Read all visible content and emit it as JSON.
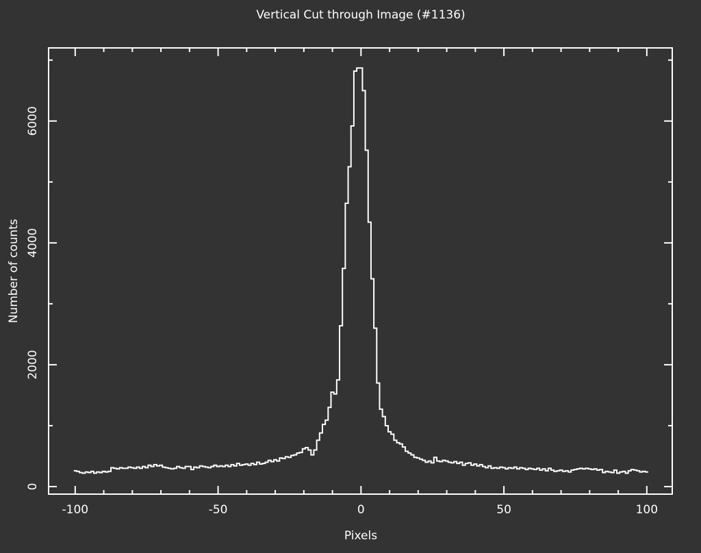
{
  "chart_data": {
    "type": "step",
    "title": "Vertical Cut through Image (#1136)",
    "x_label": "Pixels",
    "y_label": "Number of counts",
    "color": "#ffffff",
    "xlim": [
      -109.3,
      108.9
    ],
    "ylim": [
      -124,
      7200
    ],
    "xticks": [
      -100,
      -50,
      0,
      50,
      100
    ],
    "yticks": [
      0,
      2000,
      4000,
      6000
    ],
    "xminorticks": [
      -90,
      -80,
      -70,
      -60,
      -40,
      -30,
      -20,
      -10,
      10,
      20,
      30,
      40,
      60,
      70,
      80,
      90
    ],
    "yminorticks": [
      1000,
      3000,
      5000,
      7000
    ],
    "x": [
      -100,
      -99,
      -98,
      -97,
      -96,
      -95,
      -94,
      -93,
      -92,
      -91,
      -90,
      -89,
      -88,
      -87,
      -86,
      -85,
      -84,
      -83,
      -82,
      -81,
      -80,
      -79,
      -78,
      -77,
      -76,
      -75,
      -74,
      -73,
      -72,
      -71,
      -70,
      -69,
      -68,
      -67,
      -66,
      -65,
      -64,
      -63,
      -62,
      -61,
      -60,
      -59,
      -58,
      -57,
      -56,
      -55,
      -54,
      -53,
      -52,
      -51,
      -50,
      -49,
      -48,
      -47,
      -46,
      -45,
      -44,
      -43,
      -42,
      -41,
      -40,
      -39,
      -38,
      -37,
      -36,
      -35,
      -34,
      -33,
      -32,
      -31,
      -30,
      -29,
      -28,
      -27,
      -26,
      -25,
      -24,
      -23,
      -22,
      -21,
      -20,
      -19,
      -18,
      -17,
      -16,
      -15,
      -14,
      -13,
      -12,
      -11,
      -10,
      -9,
      -8,
      -7,
      -6,
      -5,
      -4,
      -3,
      -2,
      -1,
      0,
      1,
      2,
      3,
      4,
      5,
      6,
      7,
      8,
      9,
      10,
      11,
      12,
      13,
      14,
      15,
      16,
      17,
      18,
      19,
      20,
      21,
      22,
      23,
      24,
      25,
      26,
      27,
      28,
      29,
      30,
      31,
      32,
      33,
      34,
      35,
      36,
      37,
      38,
      39,
      40,
      41,
      42,
      43,
      44,
      45,
      46,
      47,
      48,
      49,
      50,
      51,
      52,
      53,
      54,
      55,
      56,
      57,
      58,
      59,
      60,
      61,
      62,
      63,
      64,
      65,
      66,
      67,
      68,
      69,
      70,
      71,
      72,
      73,
      74,
      75,
      76,
      77,
      78,
      79,
      80,
      81,
      82,
      83,
      84,
      85,
      86,
      87,
      88,
      89,
      90,
      91,
      92,
      93,
      94,
      95,
      96,
      97,
      98,
      99,
      100
    ],
    "values": [
      260,
      250,
      230,
      220,
      240,
      230,
      250,
      220,
      240,
      230,
      250,
      240,
      250,
      310,
      300,
      290,
      310,
      300,
      300,
      320,
      310,
      300,
      320,
      300,
      330,
      310,
      350,
      330,
      360,
      340,
      350,
      320,
      310,
      300,
      290,
      300,
      330,
      310,
      300,
      330,
      330,
      280,
      320,
      310,
      340,
      330,
      320,
      310,
      330,
      350,
      330,
      340,
      330,
      350,
      330,
      360,
      340,
      380,
      350,
      360,
      370,
      350,
      380,
      360,
      400,
      370,
      380,
      400,
      430,
      410,
      440,
      420,
      470,
      460,
      490,
      480,
      510,
      520,
      550,
      560,
      620,
      640,
      600,
      520,
      600,
      760,
      880,
      1020,
      1090,
      1300,
      1550,
      1520,
      1750,
      2640,
      3580,
      4650,
      5250,
      5920,
      6820,
      6870,
      6870,
      6500,
      5520,
      4340,
      3410,
      2600,
      1700,
      1270,
      1150,
      1000,
      900,
      860,
      760,
      720,
      700,
      650,
      580,
      550,
      520,
      480,
      470,
      450,
      430,
      400,
      420,
      390,
      480,
      420,
      410,
      430,
      420,
      400,
      390,
      410,
      380,
      400,
      350,
      380,
      390,
      350,
      370,
      340,
      360,
      330,
      310,
      340,
      300,
      310,
      300,
      320,
      310,
      290,
      310,
      300,
      320,
      290,
      310,
      300,
      280,
      300,
      290,
      280,
      300,
      270,
      290,
      260,
      300,
      270,
      250,
      260,
      270,
      250,
      260,
      240,
      270,
      280,
      290,
      300,
      290,
      300,
      290,
      280,
      290,
      270,
      280,
      230,
      250,
      240,
      230,
      270,
      220,
      240,
      250,
      220,
      260,
      280,
      270,
      260,
      240,
      250,
      240
    ]
  }
}
